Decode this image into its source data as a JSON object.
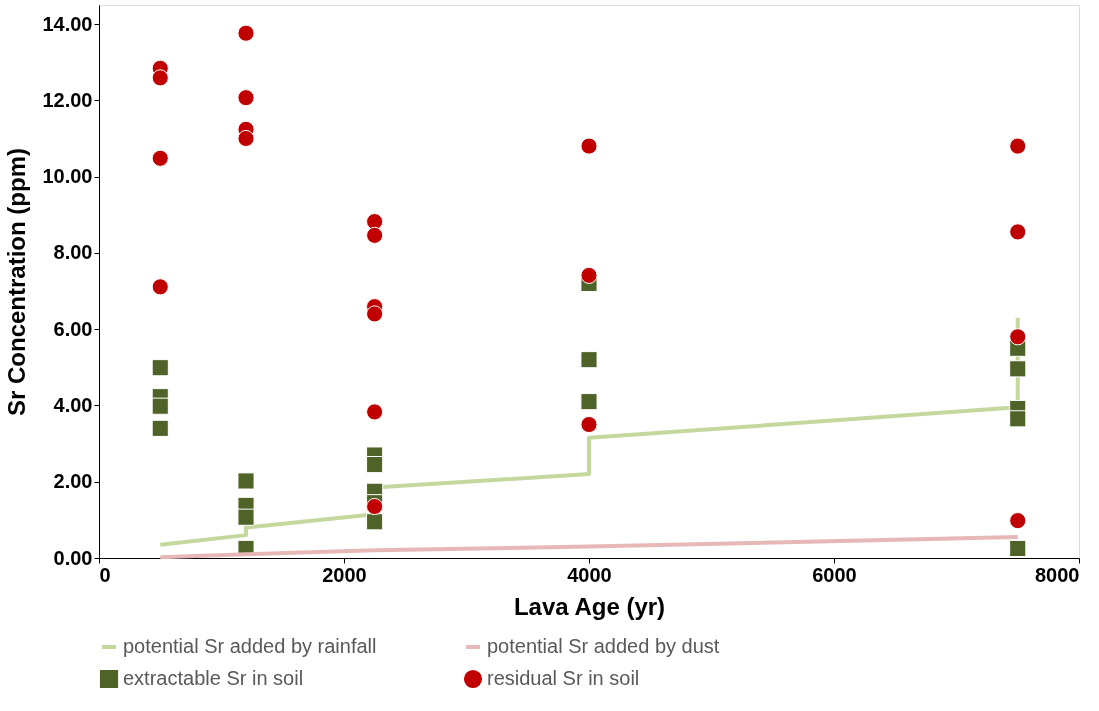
{
  "chart_data": {
    "type": "scatter",
    "xlabel": "Lava Age (yr)",
    "ylabel": "Sr Concentration (ppm)",
    "xlim": [
      0,
      8000
    ],
    "xticks": [
      0,
      2000,
      4000,
      6000,
      8000
    ],
    "ylim": [
      0,
      14.5
    ],
    "yticks": [
      {
        "value": 0,
        "label": "0.00"
      },
      {
        "value": 2,
        "label": "2.00"
      },
      {
        "value": 4,
        "label": "4.00"
      },
      {
        "value": 6,
        "label": "6.00"
      },
      {
        "value": 8,
        "label": "8.00"
      },
      {
        "value": 10,
        "label": "10.00"
      },
      {
        "value": 12,
        "label": "12.00"
      },
      {
        "value": 14,
        "label": "14.00"
      }
    ],
    "grid": false,
    "legend": "bottom",
    "series": [
      {
        "name": "potential Sr added by rainfall",
        "type": "line",
        "color": "#c4d89e",
        "x": [
          500,
          1200,
          1200,
          2250,
          2250,
          4000,
          4000,
          7500,
          7500
        ],
        "values": [
          0.35,
          0.6,
          0.8,
          1.15,
          1.85,
          2.2,
          3.15,
          3.95,
          6.3
        ]
      },
      {
        "name": "potential Sr added by dust",
        "type": "line",
        "color": "#e6b8b7",
        "x": [
          500,
          1200,
          2250,
          4000,
          7500
        ],
        "values": [
          0.02,
          0.1,
          0.2,
          0.3,
          0.55
        ]
      },
      {
        "name": "extractable Sr in soil",
        "type": "scatter",
        "marker": "square",
        "color": "#4f6228",
        "x": [
          500,
          500,
          500,
          500,
          1200,
          1200,
          1200,
          1200,
          2250,
          2250,
          2250,
          2250,
          2250,
          4000,
          4000,
          4000,
          7500,
          7500,
          7500,
          7500,
          7500
        ],
        "values": [
          4.99,
          4.23,
          3.98,
          3.4,
          2.02,
          1.38,
          1.07,
          0.25,
          2.7,
          2.45,
          1.75,
          1.45,
          0.95,
          7.2,
          5.2,
          4.1,
          5.5,
          4.96,
          3.92,
          3.65,
          0.25
        ]
      },
      {
        "name": "residual Sr in soil",
        "type": "scatter",
        "marker": "circle",
        "color": "#c00000",
        "x": [
          500,
          500,
          500,
          500,
          1200,
          1200,
          1200,
          1200,
          2250,
          2250,
          2250,
          2250,
          2250,
          2250,
          4000,
          4000,
          4000,
          7500,
          7500,
          7500,
          7500
        ],
        "values": [
          12.84,
          12.59,
          10.48,
          7.11,
          13.76,
          12.07,
          11.24,
          11.0,
          8.82,
          8.46,
          6.59,
          6.4,
          3.83,
          1.35,
          10.8,
          7.41,
          3.5,
          10.8,
          8.55,
          5.8,
          0.98
        ]
      }
    ]
  }
}
